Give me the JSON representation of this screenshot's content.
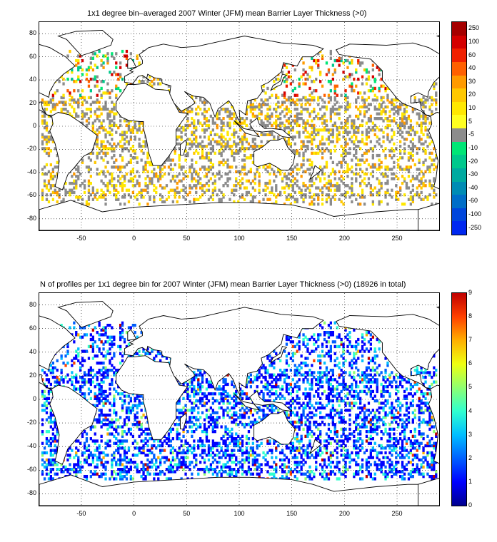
{
  "top": {
    "title": "1x1 degree bin–averaged 2007 Winter (JFM) mean Barrier Layer Thickness (>0)",
    "x_ticks": [
      "-50",
      "0",
      "50",
      "100",
      "150",
      "200",
      "250"
    ],
    "y_ticks": [
      "80",
      "60",
      "40",
      "20",
      "0",
      "-20",
      "-40",
      "-60",
      "-80"
    ],
    "colorbar_labels": [
      "250",
      "100",
      "60",
      "40",
      "30",
      "20",
      "10",
      "5",
      "-5",
      "-10",
      "-20",
      "-30",
      "-40",
      "-60",
      "-100",
      "-250"
    ],
    "colorbar_colors": [
      "#a50000",
      "#d40000",
      "#f02000",
      "#ff6000",
      "#ff9a00",
      "#ffc800",
      "#ffe800",
      "#ffff20",
      "#8c8c8c",
      "#00e676",
      "#00c88c",
      "#00aaa0",
      "#008cb4",
      "#006ec8",
      "#0046dc",
      "#0028f0"
    ]
  },
  "bottom": {
    "title": "N of profiles per 1x1 degree bin for 2007 Winter (JFM) mean Barrier Layer Thickness (>0) (18926 in total)",
    "x_ticks": [
      "-50",
      "0",
      "50",
      "100",
      "150",
      "200",
      "250"
    ],
    "y_ticks": [
      "80",
      "60",
      "40",
      "20",
      "0",
      "-20",
      "-40",
      "-60",
      "-80"
    ],
    "colorbar_labels": [
      "9",
      "8",
      "7",
      "6",
      "5",
      "4",
      "3",
      "2",
      "1",
      "0"
    ]
  },
  "chart_data": [
    {
      "type": "heatmap",
      "title": "1x1 degree bin–averaged 2007 Winter (JFM) mean Barrier Layer Thickness (>0)",
      "x_range": [
        -90,
        290
      ],
      "y_range": [
        -90,
        90
      ],
      "x_ticks": [
        -50,
        0,
        50,
        100,
        150,
        200,
        250
      ],
      "y_ticks": [
        80,
        60,
        40,
        20,
        0,
        -20,
        -40,
        -60,
        -80
      ],
      "grid": true,
      "colorbar_levels": [
        -250,
        -100,
        -60,
        -40,
        -30,
        -20,
        -10,
        -5,
        5,
        10,
        20,
        30,
        40,
        60,
        100,
        250
      ]
    },
    {
      "type": "heatmap",
      "title": "N of profiles per 1x1 degree bin for 2007 Winter (JFM) mean Barrier Layer Thickness (>0) (18926 in total)",
      "x_range": [
        -90,
        290
      ],
      "y_range": [
        -90,
        90
      ],
      "x_ticks": [
        -50,
        0,
        50,
        100,
        150,
        200,
        250
      ],
      "y_ticks": [
        80,
        60,
        40,
        20,
        0,
        -20,
        -40,
        -60,
        -80
      ],
      "grid": true,
      "colorbar_range": [
        0,
        9
      ],
      "total_profiles": 18926
    }
  ]
}
